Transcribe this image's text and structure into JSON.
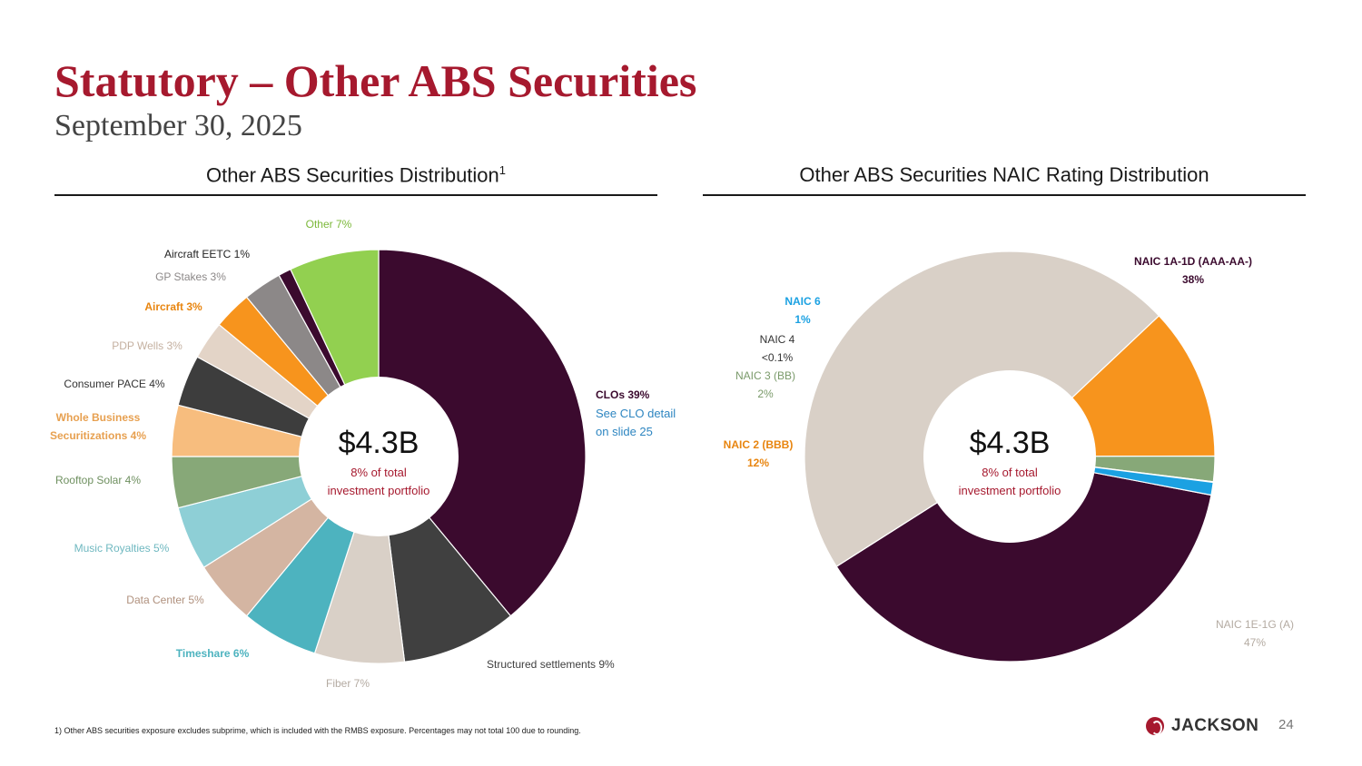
{
  "header": {
    "title": "Statutory – Other ABS Securities",
    "subtitle": "September 30, 2025"
  },
  "left_section": {
    "heading": "Other ABS Securities Distribution",
    "heading_sup": "1"
  },
  "right_section": {
    "heading": "Other ABS Securities NAIC Rating Distribution"
  },
  "colors": {
    "brand_red": "#a6192e",
    "clo_note": "#2e86c1"
  },
  "footer": {
    "footnote": "1) Other ABS securities exposure excludes subprime, which is included with the RMBS exposure. Percentages may not total 100 due to rounding.",
    "logo_text": "JACKSON",
    "logo_icon": "jackson-logo-icon",
    "page_number": "24"
  },
  "chart_data": [
    {
      "type": "pie",
      "donut": true,
      "center_value": "$4.3B",
      "center_caption_line1": "8% of total",
      "center_caption_line2": "investment portfolio",
      "note_line1": "See CLO detail",
      "note_line2": "on slide 25",
      "slices": [
        {
          "label": "CLOs 39%",
          "value": 39,
          "color": "#3b0a2e",
          "label_color": "#3b0a2e"
        },
        {
          "label": "Structured settlements 9%",
          "value": 9,
          "color": "#404040",
          "label_color": "#404040"
        },
        {
          "label": "Fiber 7%",
          "value": 7,
          "color": "#d9d0c7",
          "label_color": "#b4aba2"
        },
        {
          "label": "Timeshare 6%",
          "value": 6,
          "color": "#4db3bf",
          "label_color": "#4db3bf"
        },
        {
          "label": "Data Center 5%",
          "value": 5,
          "color": "#d4b5a2",
          "label_color": "#b0917e"
        },
        {
          "label": "Music Royalties 5%",
          "value": 5,
          "color": "#8ecfd6",
          "label_color": "#6fb8c0"
        },
        {
          "label": "Rooftop Solar 4%",
          "value": 4,
          "color": "#87a878",
          "label_color": "#6f9060"
        },
        {
          "label": "Whole Business Securitizations 4%",
          "value": 4,
          "color": "#f7bd7e",
          "label_color": "#e7a050"
        },
        {
          "label": "Consumer PACE 4%",
          "value": 4,
          "color": "#3d3d3d",
          "label_color": "#333333"
        },
        {
          "label": "PDP Wells 3%",
          "value": 3,
          "color": "#e3d4c7",
          "label_color": "#c4b0a0"
        },
        {
          "label": "Aircraft 3%",
          "value": 3,
          "color": "#f7941d",
          "label_color": "#e8850f"
        },
        {
          "label": "GP Stakes 3%",
          "value": 3,
          "color": "#8c8888",
          "label_color": "#8c8888"
        },
        {
          "label": "Aircraft EETC 1%",
          "value": 1,
          "color": "#3b0a2e",
          "label_color": "#222222"
        },
        {
          "label": "Other 7%",
          "value": 7,
          "color": "#92d050",
          "label_color": "#7cb83a"
        }
      ]
    },
    {
      "type": "pie",
      "donut": true,
      "center_value": "$4.3B",
      "center_caption_line1": "8% of total",
      "center_caption_line2": "investment portfolio",
      "slices": [
        {
          "label": "NAIC 1A-1D (AAA-AA-)",
          "pct": "38%",
          "value": 38,
          "color": "#3b0a2e",
          "label_color": "#3b0a2e"
        },
        {
          "label": "NAIC 1E-1G (A)",
          "pct": "47%",
          "value": 47,
          "color": "#d9d0c7",
          "label_color": "#b4aba2"
        },
        {
          "label": "NAIC 2 (BBB)",
          "pct": "12%",
          "value": 12,
          "color": "#f7941d",
          "label_color": "#e8850f"
        },
        {
          "label": "NAIC 3 (BB)",
          "pct": "2%",
          "value": 2,
          "color": "#87a878",
          "label_color": "#7a9a6a"
        },
        {
          "label": "NAIC 4",
          "pct": "<0.1%",
          "value": 0.05,
          "color": "#404040",
          "label_color": "#333333"
        },
        {
          "label": "NAIC 6",
          "pct": "1%",
          "value": 1,
          "color": "#1ba1e2",
          "label_color": "#1ba1e2"
        }
      ]
    }
  ]
}
